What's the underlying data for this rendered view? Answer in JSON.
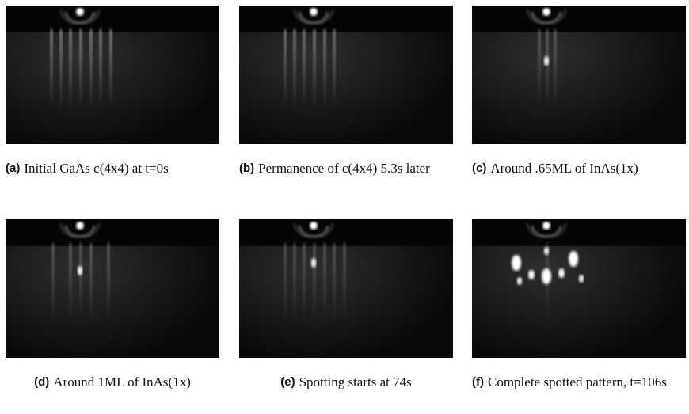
{
  "panels": [
    {
      "label": "(a)",
      "caption": "Initial GaAs c(4x4) at t=0s"
    },
    {
      "label": "(b)",
      "caption": "Permanence of c(4x4) 5.3s later"
    },
    {
      "label": "(c)",
      "caption": "Around .65ML of InAs(1x)"
    },
    {
      "label": "(d)",
      "caption": "Around 1ML of InAs(1x)"
    },
    {
      "label": "(e)",
      "caption": "Spotting starts at 74s"
    },
    {
      "label": "(f)",
      "caption": "Complete spotted pattern, t=106s"
    }
  ]
}
